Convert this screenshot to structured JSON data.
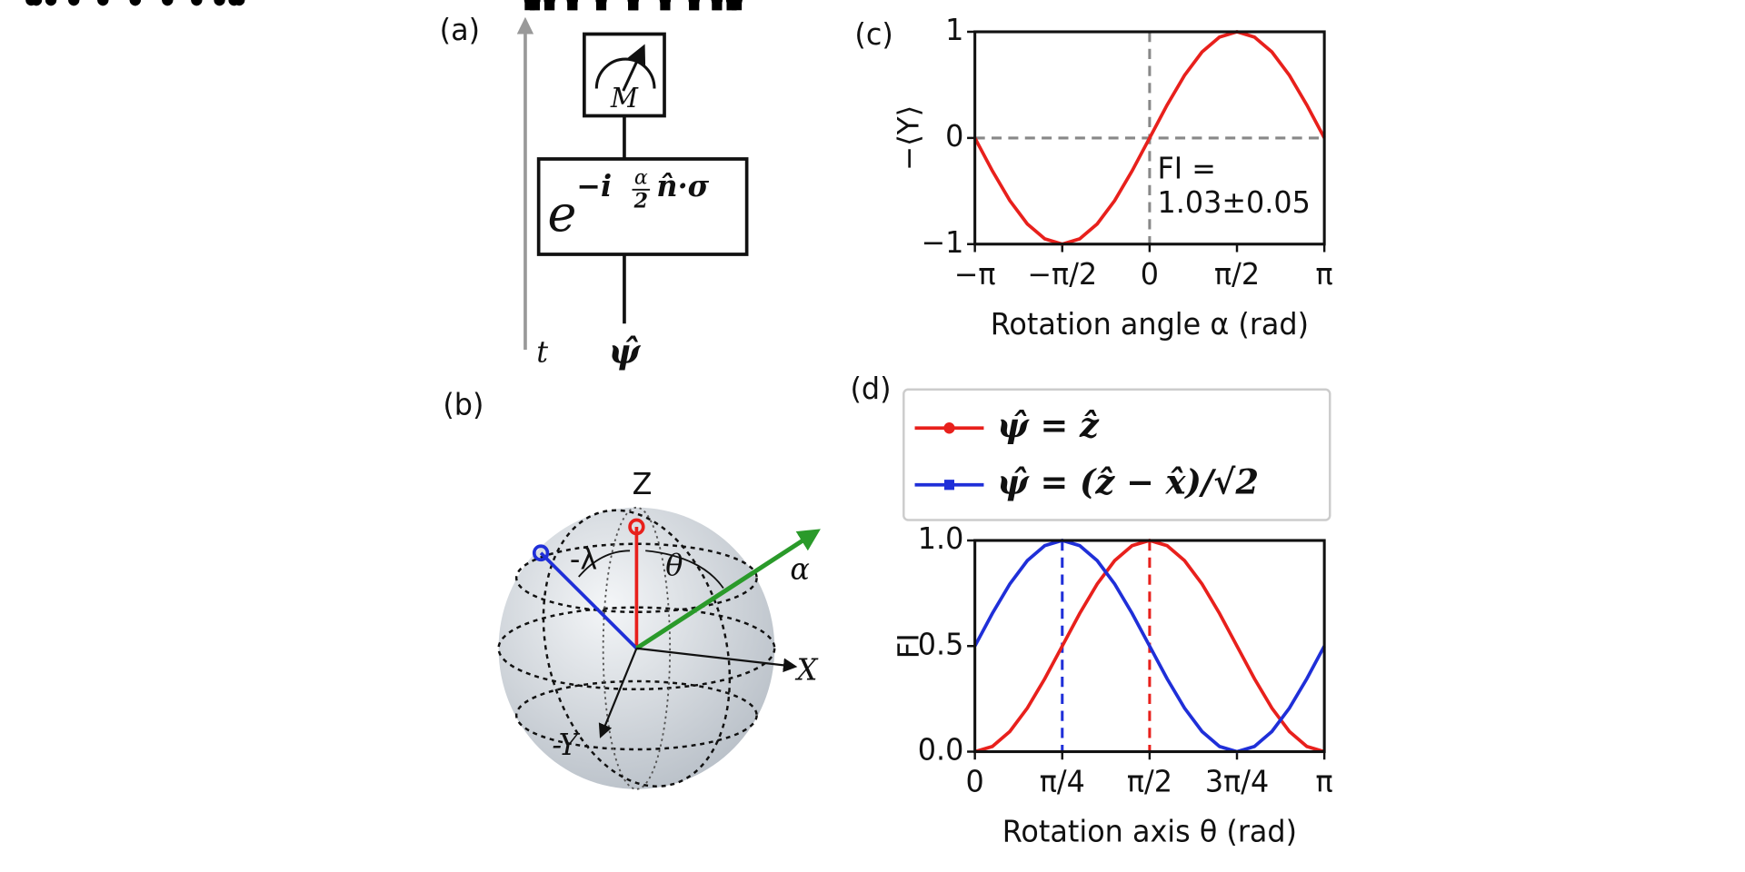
{
  "panels": {
    "labels": [
      "(a)",
      "(b)",
      "(c)",
      "(d)"
    ],
    "circuit": {
      "time": "t",
      "meter": "M",
      "state": "ψ̂",
      "base": "e",
      "exponent": "−i",
      "frac_num": "α",
      "frac_den": "2",
      "operator": "n̂·σ"
    },
    "sphere": {
      "z": "Z",
      "x": "X",
      "y": "-Y",
      "lambda": "-λ",
      "theta": "θ",
      "alpha": "α"
    }
  },
  "chart_data": [
    {
      "type": "line",
      "xlabel": "Rotation angle α (rad)",
      "ylabel": "−⟨Y⟩",
      "x": [
        -3.1416,
        -2.8274,
        -2.5133,
        -2.1991,
        -1.885,
        -1.5708,
        -1.2566,
        -0.9425,
        -0.6283,
        -0.3142,
        0,
        0.3142,
        0.6283,
        0.9425,
        1.2566,
        1.5708,
        1.885,
        2.1991,
        2.5133,
        2.8274,
        3.1416
      ],
      "values": [
        0,
        -0.31,
        -0.59,
        -0.81,
        -0.95,
        -1,
        -0.95,
        -0.81,
        -0.59,
        -0.31,
        0,
        0.31,
        0.59,
        0.81,
        0.95,
        1,
        0.95,
        0.81,
        0.59,
        0.31,
        0
      ],
      "color": "#e8201c",
      "marker": "circle",
      "xlim": [
        -3.1416,
        3.1416
      ],
      "xticks": [
        {
          "value": -3.1416,
          "label": "−π"
        },
        {
          "value": -1.5708,
          "label": "−π/2"
        },
        0,
        {
          "value": 1.5708,
          "label": "π/2"
        },
        {
          "value": 3.1416,
          "label": "π"
        }
      ],
      "ylim": [
        -1,
        1
      ],
      "yticks": [
        {
          "value": -1,
          "label": "−1"
        },
        0,
        1
      ],
      "ref_lines": [
        {
          "x": 0,
          "color": "#888888"
        },
        {
          "y": 0,
          "color": "#888888"
        }
      ],
      "annotation": [
        "FI =",
        "1.03±0.05"
      ]
    },
    {
      "type": "line",
      "xlabel": "Rotation axis θ (rad)",
      "ylabel": "FI",
      "x": [
        0,
        0.1571,
        0.3142,
        0.4712,
        0.6283,
        0.7854,
        0.9425,
        1.0996,
        1.2566,
        1.4137,
        1.5708,
        1.7279,
        1.885,
        2.042,
        2.1991,
        2.3562,
        2.5133,
        2.6704,
        2.8274,
        2.9845,
        3.1416
      ],
      "series": [
        {
          "name": "ψ̂ = ẑ",
          "color": "#e8201c",
          "marker": "circle",
          "values": [
            0,
            0.0245,
            0.0955,
            0.2061,
            0.3455,
            0.5,
            0.6545,
            0.7939,
            0.9045,
            0.9755,
            1,
            0.9755,
            0.9045,
            0.7939,
            0.6545,
            0.5,
            0.3455,
            0.2061,
            0.0955,
            0.0245,
            0
          ]
        },
        {
          "name": "ψ̂ = (ẑ − x̂)/√2",
          "color": "#1f2fd8",
          "marker": "square",
          "values": [
            0.5,
            0.6545,
            0.7939,
            0.9045,
            0.9755,
            1,
            0.9755,
            0.9045,
            0.7939,
            0.6545,
            0.5,
            0.3455,
            0.2061,
            0.0955,
            0.0245,
            0,
            0.0245,
            0.0955,
            0.2061,
            0.3455,
            0.5
          ]
        }
      ],
      "xlim": [
        0,
        3.1416
      ],
      "xticks": [
        0,
        {
          "value": 0.7854,
          "label": "π/4"
        },
        {
          "value": 1.5708,
          "label": "π/2"
        },
        {
          "value": 2.3562,
          "label": "3π/4"
        },
        {
          "value": 3.1416,
          "label": "π"
        }
      ],
      "ylim": [
        0,
        1
      ],
      "yticks": [
        {
          "value": 0,
          "label": "0.0"
        },
        {
          "value": 0.5,
          "label": "0.5"
        },
        {
          "value": 1,
          "label": "1.0"
        }
      ],
      "ref_lines": [
        {
          "x": 0.7854,
          "color": "#1f2fd8"
        },
        {
          "x": 1.5708,
          "color": "#e8201c"
        }
      ],
      "legend": "above"
    }
  ]
}
